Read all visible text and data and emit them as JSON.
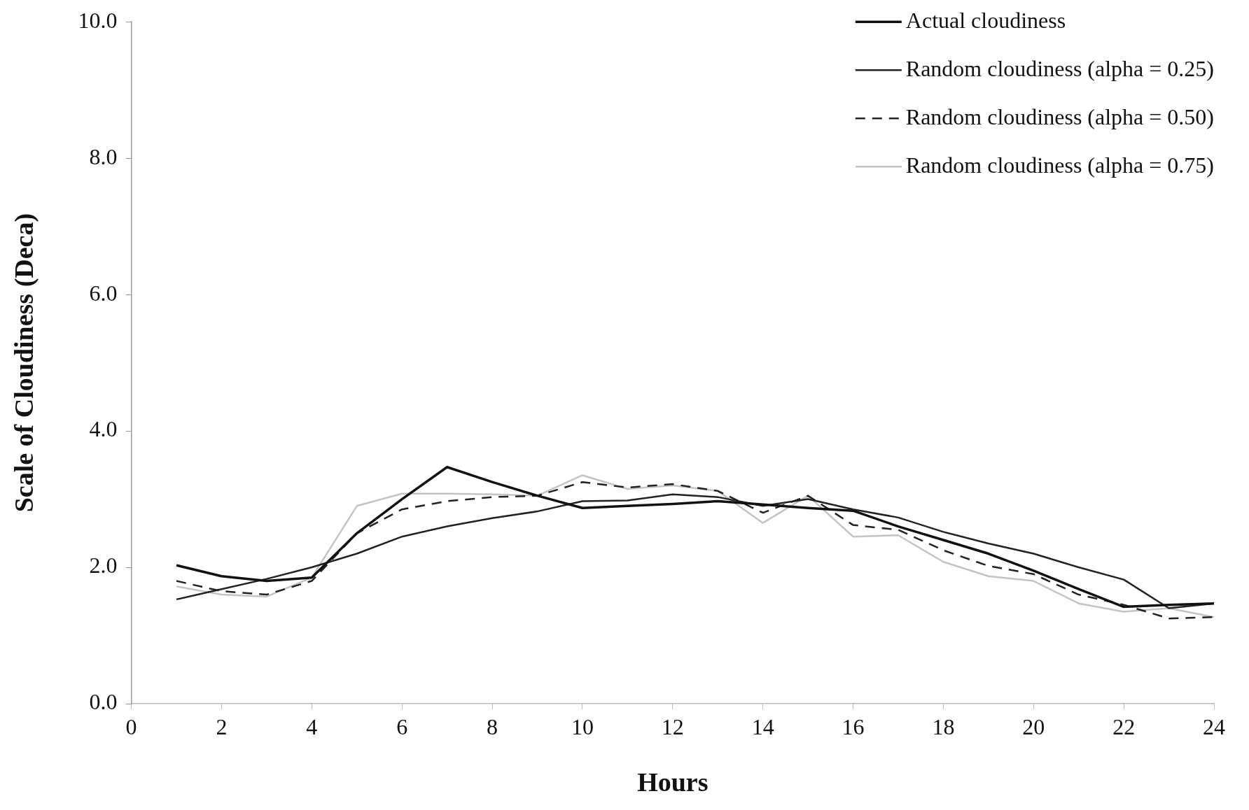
{
  "chart_data": {
    "type": "line",
    "xlabel": "Hours",
    "ylabel": "Scale of Cloudiness (Deca)",
    "x": [
      1,
      2,
      3,
      4,
      5,
      6,
      7,
      8,
      9,
      10,
      11,
      12,
      13,
      14,
      15,
      16,
      17,
      18,
      19,
      20,
      21,
      22,
      23,
      24
    ],
    "series": [
      {
        "name": "Actual cloudiness",
        "color": "#111111",
        "line_style": "solid",
        "values": [
          2.03,
          1.87,
          1.8,
          1.85,
          2.5,
          3.0,
          3.47,
          3.25,
          3.05,
          2.87,
          2.9,
          2.93,
          2.97,
          2.92,
          2.87,
          2.83,
          2.6,
          2.4,
          2.2,
          1.95,
          1.68,
          1.42,
          1.45,
          1.47
        ]
      },
      {
        "name": "Random cloudiness (alpha = 0.25)",
        "color": "#222222",
        "line_style": "solid",
        "values": [
          1.53,
          1.68,
          1.83,
          2.0,
          2.2,
          2.45,
          2.6,
          2.72,
          2.82,
          2.97,
          2.98,
          3.07,
          3.03,
          2.9,
          3.0,
          2.85,
          2.73,
          2.52,
          2.35,
          2.2,
          2.0,
          1.82,
          1.4,
          1.47
        ]
      },
      {
        "name": "Random cloudiness (alpha = 0.50)",
        "color": "#222222",
        "line_style": "dashed",
        "values": [
          1.8,
          1.65,
          1.6,
          1.8,
          2.5,
          2.85,
          2.97,
          3.03,
          3.05,
          3.25,
          3.17,
          3.22,
          3.12,
          2.8,
          3.05,
          2.62,
          2.55,
          2.25,
          2.02,
          1.9,
          1.6,
          1.45,
          1.25,
          1.27
        ]
      },
      {
        "name": "Random cloudiness (alpha = 0.75)",
        "color": "#c4c4c4",
        "line_style": "solid",
        "values": [
          1.72,
          1.6,
          1.57,
          1.85,
          2.9,
          3.08,
          3.08,
          3.07,
          3.05,
          3.35,
          3.15,
          3.2,
          3.12,
          2.65,
          3.05,
          2.45,
          2.47,
          2.08,
          1.87,
          1.8,
          1.47,
          1.35,
          1.4,
          1.27
        ]
      }
    ],
    "xlim": [
      0,
      24
    ],
    "xticks": [
      0,
      2,
      4,
      6,
      8,
      10,
      12,
      14,
      16,
      18,
      20,
      22,
      24
    ],
    "ylim": [
      0,
      10
    ],
    "yticks": [
      {
        "value": 0,
        "label": "0.0"
      },
      {
        "value": 2,
        "label": "2.0"
      },
      {
        "value": 4,
        "label": "4.0"
      },
      {
        "value": 6,
        "label": "6.0"
      },
      {
        "value": 8,
        "label": "8.0"
      },
      {
        "value": 10,
        "label": "10.0"
      }
    ],
    "grid": false,
    "legend": "top right",
    "marker": "none"
  }
}
